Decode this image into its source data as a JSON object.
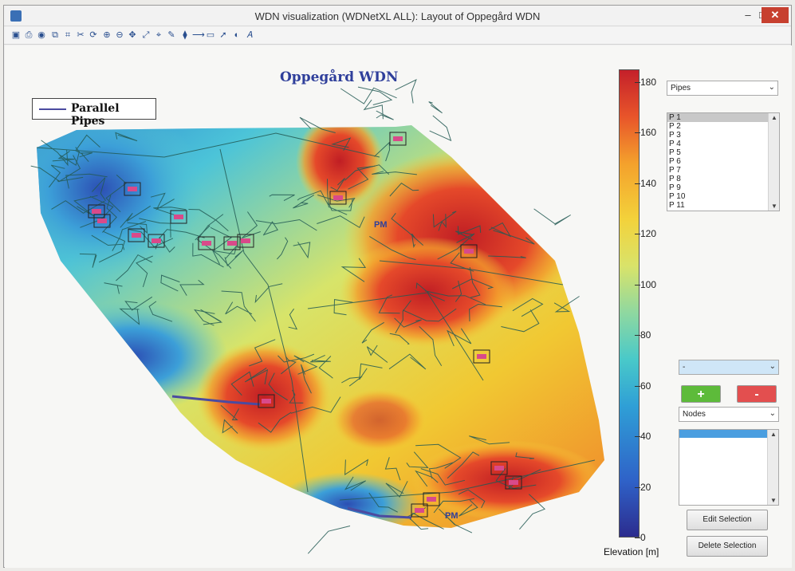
{
  "window": {
    "title": "WDN visualization (WDNetXL ALL): Layout of Oppegård WDN",
    "minimize": "–",
    "maximize": "□",
    "close": "✕"
  },
  "toolbar": {
    "icons": [
      "save-icon",
      "print-icon",
      "palette-icon",
      "new-figure-icon",
      "grid-icon",
      "cut-icon",
      "rotate-icon",
      "zoom-in-icon",
      "zoom-out-icon",
      "pan-icon",
      "fit-icon",
      "data-cursor-icon",
      "brush-icon",
      "link-icon",
      "insert-line-icon",
      "insert-shape-icon",
      "arrow-icon",
      "color-icon",
      "text-icon"
    ],
    "glyphs": [
      "▣",
      "⎙",
      "◉",
      "⧉",
      "⌗",
      "✂",
      "⟳",
      "⊕",
      "⊖",
      "✥",
      "⤢",
      "⌖",
      "✎",
      "⧫",
      "⟶",
      "▭",
      "➚",
      "◐",
      "𝐴"
    ]
  },
  "plot": {
    "title": "Oppegård WDN",
    "legend_label": "Parallel Pipes",
    "pipe_color": "#4b4ba0",
    "pm_labels": [
      "PM",
      "PM"
    ]
  },
  "chart_data": {
    "type": "heatmap",
    "title": "Oppegård WDN",
    "colorbar": {
      "label": "Elevation [m]",
      "ticks": [
        0,
        20,
        40,
        60,
        80,
        100,
        120,
        140,
        160,
        180
      ],
      "range": [
        0,
        185
      ]
    },
    "series": [
      {
        "name": "Parallel Pipes"
      }
    ]
  },
  "panel": {
    "pipes_dropdown": "Pipes",
    "pipe_list": [
      "P 1",
      "P 2",
      "P 3",
      "P 4",
      "P 5",
      "P 6",
      "P 7",
      "P 8",
      "P 9",
      "P 10",
      "P 11"
    ],
    "selection_dropdown": "-",
    "plus_label": "+",
    "minus_label": "-",
    "nodes_dropdown": "Nodes",
    "edit_selection": "Edit Selection",
    "delete_selection": "Delete Selection"
  }
}
